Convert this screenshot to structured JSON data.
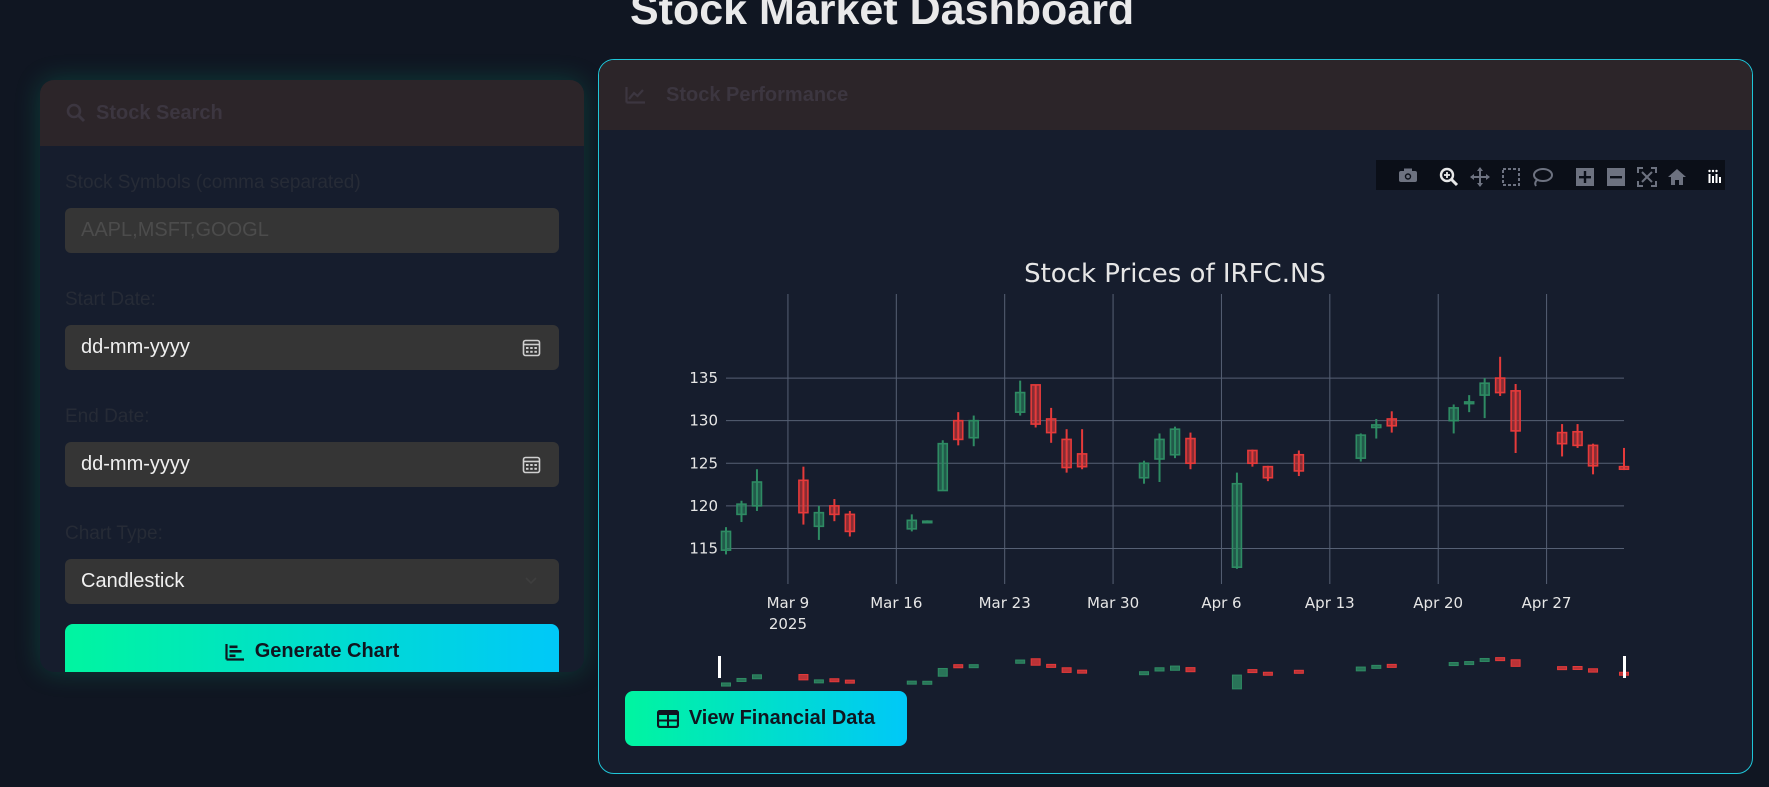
{
  "page": {
    "title": "Stock Market Dashboard"
  },
  "search": {
    "header": "Stock Search",
    "symbols_label": "Stock Symbols (comma separated)",
    "symbols_placeholder": "AAPL,MSFT,GOOGL",
    "start_label": "Start Date:",
    "start_value": "dd-mm-yyyy",
    "end_label": "End Date:",
    "end_value": "dd-mm-yyyy",
    "chart_type_label": "Chart Type:",
    "chart_type_value": "Candlestick",
    "generate_label": "Generate Chart"
  },
  "performance": {
    "header": "Stock Performance",
    "view_label": "View Financial Data"
  },
  "modebar_icons": [
    "camera-icon",
    "zoom-icon",
    "pan-icon",
    "box-select-icon",
    "lasso-icon",
    "zoom-in-icon",
    "zoom-out-icon",
    "autoscale-icon",
    "reset-axes-icon",
    "plotly-logo-icon"
  ],
  "colors": {
    "up": "#2e8b63",
    "down": "#e53a3a",
    "accent_start": "#00f5a0",
    "accent_end": "#00c8f8",
    "border": "#1fc6d8"
  },
  "chart_data": {
    "type": "candlestick",
    "title": "Stock Prices of IRFC.NS",
    "xlabel": "",
    "ylabel": "",
    "ylim": [
      112,
      139
    ],
    "xlim": [
      "2025-03-05",
      "2025-05-02"
    ],
    "yticks": [
      115,
      120,
      125,
      130,
      135
    ],
    "xticks": [
      {
        "date": "2025-03-09",
        "label": "Mar 9",
        "sub": "2025"
      },
      {
        "date": "2025-03-16",
        "label": "Mar 16",
        "sub": ""
      },
      {
        "date": "2025-03-23",
        "label": "Mar 23",
        "sub": ""
      },
      {
        "date": "2025-03-30",
        "label": "Mar 30",
        "sub": ""
      },
      {
        "date": "2025-04-06",
        "label": "Apr 6",
        "sub": ""
      },
      {
        "date": "2025-04-13",
        "label": "Apr 13",
        "sub": ""
      },
      {
        "date": "2025-04-20",
        "label": "Apr 20",
        "sub": ""
      },
      {
        "date": "2025-04-27",
        "label": "Apr 27",
        "sub": ""
      }
    ],
    "grid": true,
    "rangeslider": true,
    "candles": [
      {
        "date": "2025-03-05",
        "open": 114.8,
        "high": 117.5,
        "low": 114.3,
        "close": 117.0
      },
      {
        "date": "2025-03-06",
        "open": 119.0,
        "high": 120.6,
        "low": 118.1,
        "close": 120.2
      },
      {
        "date": "2025-03-07",
        "open": 120.0,
        "high": 124.3,
        "low": 119.4,
        "close": 122.8
      },
      {
        "date": "2025-03-10",
        "open": 123.0,
        "high": 124.6,
        "low": 117.8,
        "close": 119.2
      },
      {
        "date": "2025-03-11",
        "open": 117.6,
        "high": 120.0,
        "low": 116.0,
        "close": 119.2
      },
      {
        "date": "2025-03-12",
        "open": 120.0,
        "high": 120.8,
        "low": 118.2,
        "close": 119.0
      },
      {
        "date": "2025-03-13",
        "open": 119.0,
        "high": 119.4,
        "low": 116.4,
        "close": 117.0
      },
      {
        "date": "2025-03-17",
        "open": 117.3,
        "high": 119.0,
        "low": 117.0,
        "close": 118.3
      },
      {
        "date": "2025-03-18",
        "open": 118.1,
        "high": 118.3,
        "low": 118.0,
        "close": 118.2
      },
      {
        "date": "2025-03-19",
        "open": 121.8,
        "high": 127.7,
        "low": 121.8,
        "close": 127.3
      },
      {
        "date": "2025-03-20",
        "open": 130.0,
        "high": 131.0,
        "low": 127.1,
        "close": 127.8
      },
      {
        "date": "2025-03-21",
        "open": 128.0,
        "high": 130.6,
        "low": 127.0,
        "close": 130.0
      },
      {
        "date": "2025-03-24",
        "open": 131.0,
        "high": 134.7,
        "low": 130.6,
        "close": 133.3
      },
      {
        "date": "2025-03-25",
        "open": 134.2,
        "high": 134.2,
        "low": 129.2,
        "close": 129.6
      },
      {
        "date": "2025-03-26",
        "open": 130.2,
        "high": 131.5,
        "low": 127.4,
        "close": 128.6
      },
      {
        "date": "2025-03-27",
        "open": 127.8,
        "high": 129.0,
        "low": 123.9,
        "close": 124.5
      },
      {
        "date": "2025-03-28",
        "open": 126.1,
        "high": 129.0,
        "low": 124.3,
        "close": 124.6
      },
      {
        "date": "2025-04-01",
        "open": 123.3,
        "high": 125.3,
        "low": 122.6,
        "close": 125.0
      },
      {
        "date": "2025-04-02",
        "open": 125.5,
        "high": 128.5,
        "low": 122.8,
        "close": 127.8
      },
      {
        "date": "2025-04-03",
        "open": 126.0,
        "high": 129.3,
        "low": 125.6,
        "close": 129.0
      },
      {
        "date": "2025-04-04",
        "open": 127.9,
        "high": 128.6,
        "low": 124.3,
        "close": 125.0
      },
      {
        "date": "2025-04-07",
        "open": 112.8,
        "high": 123.9,
        "low": 112.6,
        "close": 122.6
      },
      {
        "date": "2025-04-08",
        "open": 126.5,
        "high": 126.6,
        "low": 124.6,
        "close": 125.0
      },
      {
        "date": "2025-04-09",
        "open": 124.6,
        "high": 124.7,
        "low": 122.9,
        "close": 123.3
      },
      {
        "date": "2025-04-11",
        "open": 126.0,
        "high": 126.5,
        "low": 123.5,
        "close": 124.1
      },
      {
        "date": "2025-04-15",
        "open": 125.6,
        "high": 128.5,
        "low": 125.2,
        "close": 128.3
      },
      {
        "date": "2025-04-16",
        "open": 129.2,
        "high": 130.2,
        "low": 127.9,
        "close": 129.5
      },
      {
        "date": "2025-04-17",
        "open": 130.2,
        "high": 131.1,
        "low": 128.6,
        "close": 129.4
      },
      {
        "date": "2025-04-21",
        "open": 130.0,
        "high": 131.9,
        "low": 128.5,
        "close": 131.5
      },
      {
        "date": "2025-04-22",
        "open": 132.0,
        "high": 133.0,
        "low": 131.0,
        "close": 132.2
      },
      {
        "date": "2025-04-23",
        "open": 133.0,
        "high": 135.0,
        "low": 130.3,
        "close": 134.4
      },
      {
        "date": "2025-04-24",
        "open": 135.0,
        "high": 137.5,
        "low": 132.9,
        "close": 133.3
      },
      {
        "date": "2025-04-25",
        "open": 133.5,
        "high": 134.3,
        "low": 126.2,
        "close": 128.8
      },
      {
        "date": "2025-04-28",
        "open": 128.6,
        "high": 129.6,
        "low": 125.8,
        "close": 127.3
      },
      {
        "date": "2025-04-29",
        "open": 128.7,
        "high": 129.6,
        "low": 126.8,
        "close": 127.1
      },
      {
        "date": "2025-04-30",
        "open": 127.1,
        "high": 127.3,
        "low": 123.7,
        "close": 124.7
      },
      {
        "date": "2025-05-02",
        "open": 124.6,
        "high": 126.8,
        "low": 124.2,
        "close": 124.3
      }
    ]
  }
}
